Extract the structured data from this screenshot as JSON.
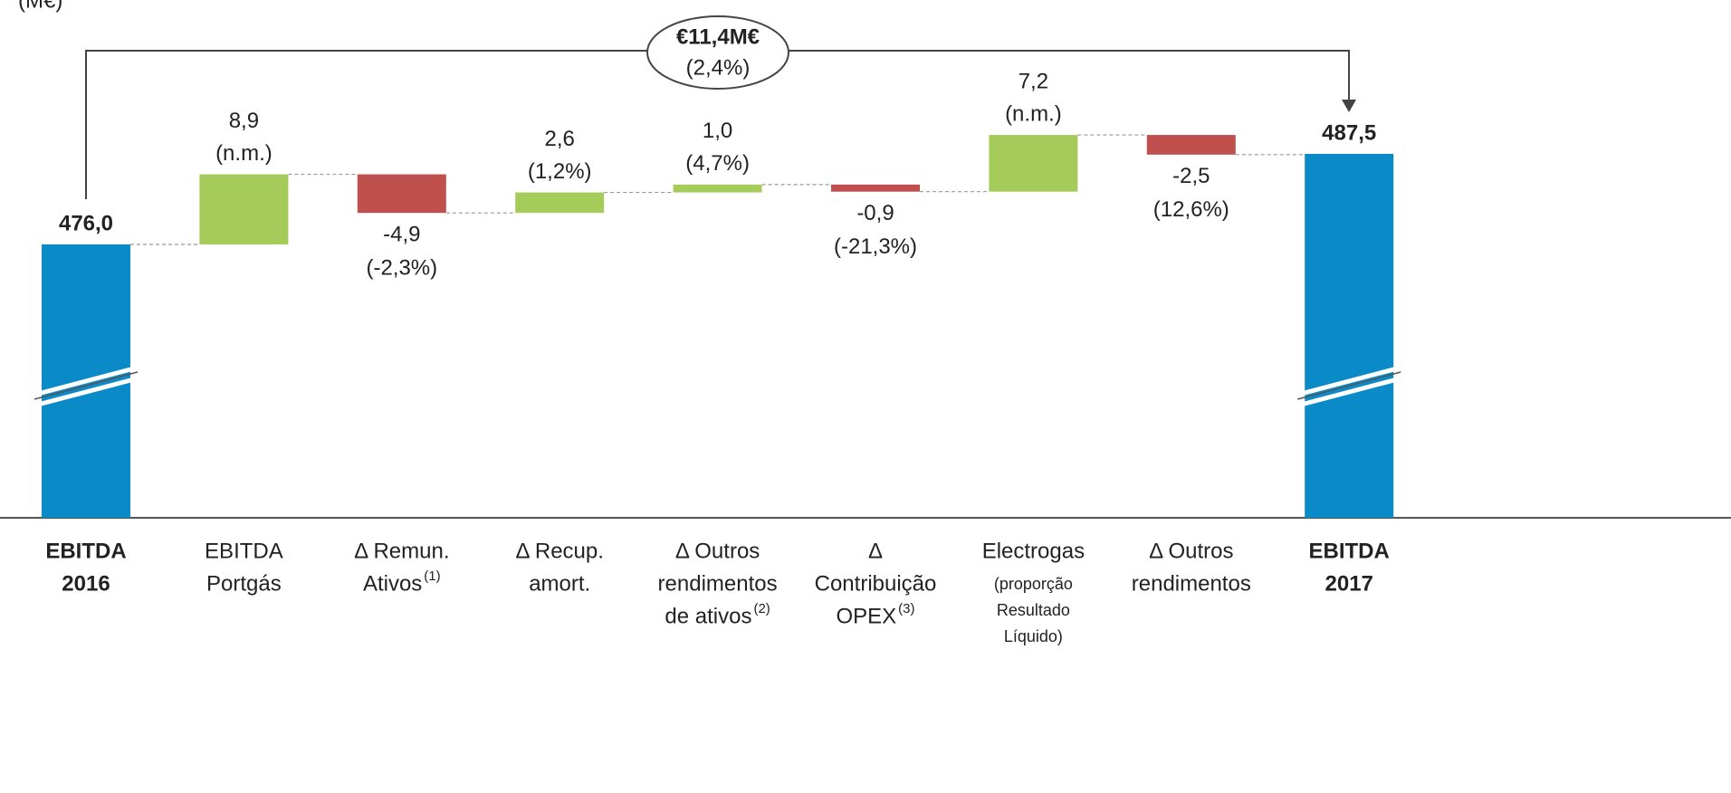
{
  "chart_data": {
    "type": "waterfall",
    "unit_label": "(M€)",
    "categories": [
      [
        "EBITDA",
        "2016"
      ],
      [
        "EBITDA",
        "Portgás"
      ],
      [
        "Δ Remun.",
        "Ativos"
      ],
      [
        "Δ Recup.",
        "amort."
      ],
      [
        "Δ Outros",
        "rendimentos",
        "de ativos"
      ],
      [
        "Δ",
        "Contribuição",
        "OPEX"
      ],
      [
        "Electrogas",
        "(proporção",
        "Resultado",
        "Líquido)"
      ],
      [
        "Δ Outros",
        "rendimentos"
      ],
      [
        "EBITDA",
        "2017"
      ]
    ],
    "category_notes": {
      "2": "(1)",
      "4": "(2)",
      "5": "(3)"
    },
    "values": [
      476.0,
      8.9,
      -4.9,
      2.6,
      1.0,
      -0.9,
      7.2,
      -2.5,
      487.5
    ],
    "value_labels": [
      "476,0",
      "8,9",
      "-4,9",
      "2,6",
      "1,0",
      "-0,9",
      "7,2",
      "-2,5",
      "487,5"
    ],
    "pct_labels": [
      null,
      "(n.m.)",
      "(-2,3%)",
      "(1,2%)",
      "(4,7%)",
      "(-21,3%)",
      "(n.m.)",
      "(12,6%)",
      null
    ],
    "is_total": [
      true,
      false,
      false,
      false,
      false,
      false,
      false,
      false,
      true
    ],
    "colors": {
      "increase": "#a5cc5b",
      "decrease": "#c0504d",
      "total": "#0a8ac6"
    },
    "annotation": {
      "text": "€11,4M€",
      "subtext": "(2,4%)"
    }
  }
}
